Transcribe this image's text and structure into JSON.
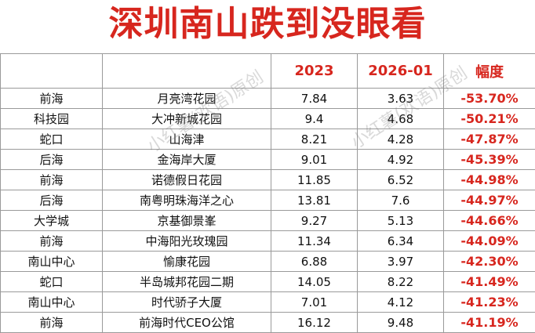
{
  "title": "深圳南山跌到没眼看",
  "watermark": "小红薯(欢语)原创",
  "table": {
    "header": [
      "2023",
      "2026-01",
      "幅度"
    ],
    "rows": [
      [
        "前海",
        "月亮湾花园",
        "7.84",
        "3.63",
        "-53.70%"
      ],
      [
        "科技园",
        "大冲新城花园",
        "9.4",
        "4.68",
        "-50.21%"
      ],
      [
        "蛇口",
        "山海津",
        "8.21",
        "4.28",
        "-47.87%"
      ],
      [
        "后海",
        "金海岸大厦",
        "9.01",
        "4.92",
        "-45.39%"
      ],
      [
        "前海",
        "诺德假日花园",
        "11.85",
        "6.52",
        "-44.98%"
      ],
      [
        "后海",
        "南粤明珠海洋之心",
        "13.81",
        "7.6",
        "-44.97%"
      ],
      [
        "大学城",
        "京基御景峯",
        "9.27",
        "5.13",
        "-44.66%"
      ],
      [
        "前海",
        "中海阳光玫瑰园",
        "11.34",
        "6.34",
        "-44.09%"
      ],
      [
        "南山中心",
        "愉康花园",
        "6.88",
        "3.97",
        "-42.30%"
      ],
      [
        "蛇口",
        "半岛城邦花园二期",
        "14.05",
        "8.22",
        "-41.49%"
      ],
      [
        "南山中心",
        "时代骄子大厦",
        "7.01",
        "4.12",
        "-41.23%"
      ],
      [
        "前海",
        "前海时代CEO公馆",
        "16.12",
        "9.48",
        "-41.19%"
      ]
    ]
  }
}
